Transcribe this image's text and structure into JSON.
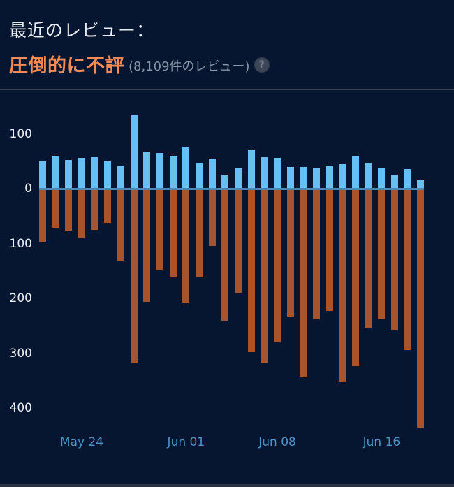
{
  "header": {
    "title": "最近のレビュー：",
    "rating": "圧倒的に不評",
    "count": "(8,109件のレビュー)",
    "help_icon": "question-mark-icon",
    "help_glyph": "?"
  },
  "colors": {
    "background": "#061630",
    "positive": "#66c0f4",
    "negative": "#a9532b",
    "rating": "#f58b53",
    "axis_label": "#4a92c8",
    "zero_line": "#4a88b6"
  },
  "chart_data": {
    "type": "bar",
    "title": "最近のレビュー",
    "xlabel": "",
    "ylabel": "",
    "ylim": [
      -450,
      150
    ],
    "y_ticks": [
      {
        "value": 100,
        "label": "100"
      },
      {
        "value": 0,
        "label": "0"
      },
      {
        "value": -100,
        "label": "100"
      },
      {
        "value": -200,
        "label": "200"
      },
      {
        "value": -300,
        "label": "300"
      },
      {
        "value": -400,
        "label": "400"
      }
    ],
    "x_ticks": [
      {
        "index": 3,
        "label": "May 24"
      },
      {
        "index": 11,
        "label": "Jun 01"
      },
      {
        "index": 18,
        "label": "Jun 08"
      },
      {
        "index": 26,
        "label": "Jun 16"
      }
    ],
    "grid": false,
    "legend": null,
    "series": [
      {
        "name": "positive",
        "color": "#66c0f4",
        "values": [
          50,
          60,
          52,
          56,
          58,
          51,
          41,
          135,
          68,
          65,
          60,
          76,
          46,
          55,
          26,
          37,
          70,
          59,
          56,
          40,
          40,
          37,
          41,
          44,
          60,
          46,
          38,
          26,
          36,
          17
        ]
      },
      {
        "name": "negative",
        "color": "#a9532b",
        "values": [
          -98,
          -71,
          -76,
          -89,
          -75,
          -63,
          -131,
          -317,
          -206,
          -148,
          -160,
          -208,
          -162,
          -105,
          -242,
          -191,
          -298,
          -317,
          -279,
          -233,
          -343,
          -238,
          -223,
          -353,
          -324,
          -255,
          -237,
          -259,
          -294,
          -437
        ]
      }
    ]
  }
}
